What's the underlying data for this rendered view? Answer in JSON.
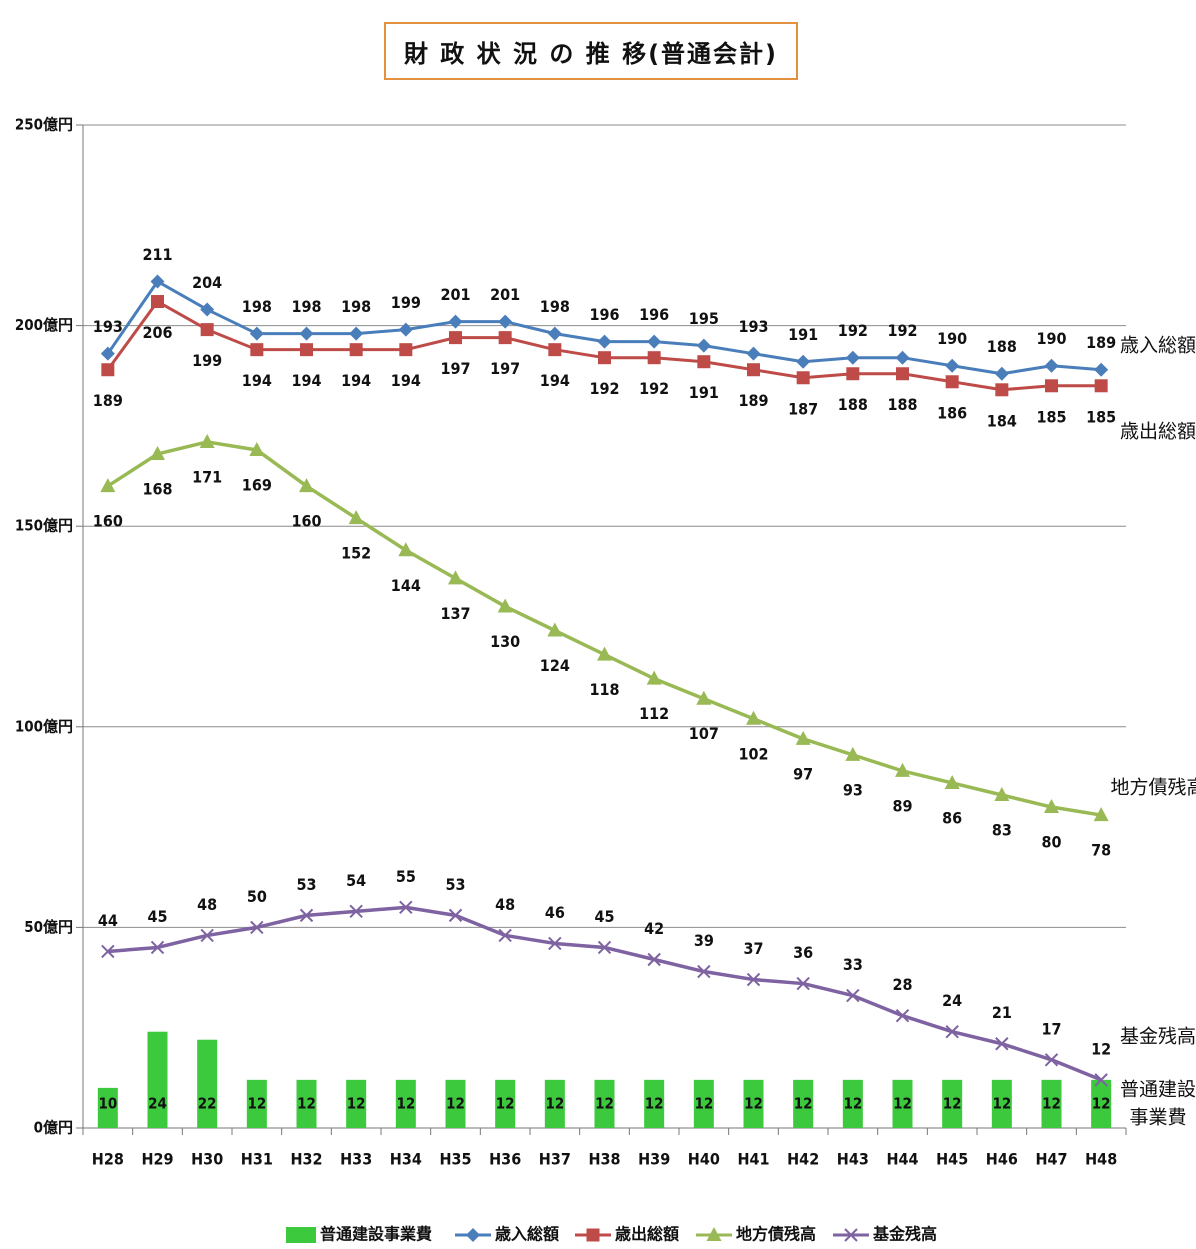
{
  "chart_data": {
    "type": "line",
    "title": "財 政 状 況 の 推 移(普通会計)",
    "categories": [
      "H28",
      "H29",
      "H30",
      "H31",
      "H32",
      "H33",
      "H34",
      "H35",
      "H36",
      "H37",
      "H38",
      "H39",
      "H40",
      "H41",
      "H42",
      "H43",
      "H44",
      "H45",
      "H46",
      "H47",
      "H48"
    ],
    "y_ticks": [
      "0億円",
      "50億円",
      "100億円",
      "150億円",
      "200億円",
      "250億円"
    ],
    "ylim": [
      0,
      250
    ],
    "grid": true,
    "legend_position": "bottom",
    "series": [
      {
        "name": "普通建設事業費",
        "type": "bar",
        "color": "#3dc93d",
        "end_label": "普通建設\n事業費",
        "values": [
          10,
          24,
          22,
          12,
          12,
          12,
          12,
          12,
          12,
          12,
          12,
          12,
          12,
          12,
          12,
          12,
          12,
          12,
          12,
          12,
          12
        ]
      },
      {
        "name": "歳入総額",
        "type": "line",
        "marker": "diamond",
        "color": "#4a7ebb",
        "end_label": "歳入総額",
        "values": [
          193,
          211,
          204,
          198,
          198,
          198,
          199,
          201,
          201,
          198,
          196,
          196,
          195,
          193,
          191,
          192,
          192,
          190,
          188,
          190,
          189
        ]
      },
      {
        "name": "歳出総額",
        "type": "line",
        "marker": "square",
        "color": "#be4b48",
        "end_label": "歳出総額",
        "values": [
          189,
          206,
          199,
          194,
          194,
          194,
          194,
          197,
          197,
          194,
          192,
          192,
          191,
          189,
          187,
          188,
          188,
          186,
          184,
          185,
          185
        ]
      },
      {
        "name": "地方債残高",
        "type": "line",
        "marker": "triangle",
        "color": "#98b954",
        "end_label": "地方債残高",
        "values": [
          160,
          168,
          171,
          169,
          160,
          152,
          144,
          137,
          130,
          124,
          118,
          112,
          107,
          102,
          97,
          93,
          89,
          86,
          83,
          80,
          78
        ]
      },
      {
        "name": "基金残高",
        "type": "line",
        "marker": "x",
        "color": "#7e62a1",
        "end_label": "基金残高",
        "values": [
          44,
          45,
          48,
          50,
          53,
          54,
          55,
          53,
          48,
          46,
          45,
          42,
          39,
          37,
          36,
          33,
          28,
          24,
          21,
          17,
          12
        ]
      }
    ]
  }
}
